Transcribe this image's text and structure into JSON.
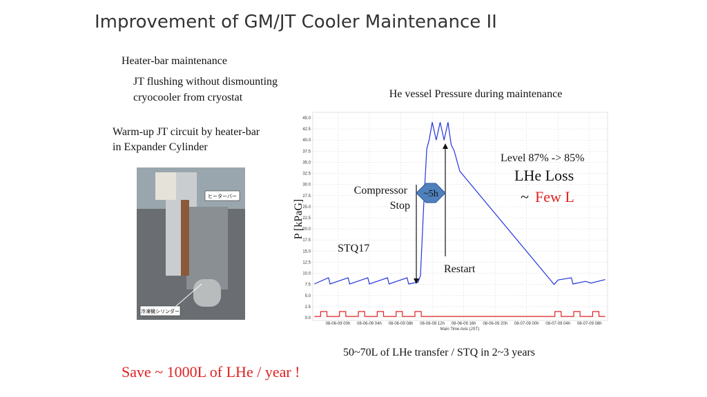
{
  "title": "Improvement of GM/JT Cooler Maintenance II",
  "left": {
    "heading": "Heater-bar maintenance",
    "sub1": "JT flushing without dismounting",
    "sub2": "cryocooler from cryostat",
    "warm1": "Warm-up JT circuit by heater-bar",
    "warm2": "in Expander Cylinder",
    "photo_label1": "ヒーターバー",
    "photo_label2": "冷凍機シリンダー"
  },
  "chart": {
    "type": "line",
    "title": "He vessel Pressure during maintenance",
    "ylabel": "P [kPaG]",
    "xlabel": "Main Time Axis (JST)",
    "xlim": [
      -3.2,
      34.3
    ],
    "ylim": [
      0,
      45
    ],
    "yticks": [
      {
        "value": 0,
        "label": "0.0"
      },
      {
        "value": 2.5,
        "label": "2.5"
      },
      {
        "value": 5,
        "label": "5.0"
      },
      {
        "value": 7.5,
        "label": "7.5"
      },
      {
        "value": 10,
        "label": "10.0"
      },
      {
        "value": 12.5,
        "label": "12.5"
      },
      {
        "value": 15,
        "label": "15.0"
      },
      {
        "value": 17.5,
        "label": "17.5"
      },
      {
        "value": 20,
        "label": "20.0"
      },
      {
        "value": 22.5,
        "label": "22.5"
      },
      {
        "value": 25,
        "label": "25.0"
      },
      {
        "value": 27.5,
        "label": "27.5"
      },
      {
        "value": 30,
        "label": "30.0"
      },
      {
        "value": 32.5,
        "label": "32.5"
      },
      {
        "value": 35,
        "label": "35.0"
      },
      {
        "value": 37.5,
        "label": "37.5"
      },
      {
        "value": 40,
        "label": "40.0"
      },
      {
        "value": 42.5,
        "label": "42.5"
      },
      {
        "value": 45,
        "label": "45.0"
      }
    ],
    "xticks": [
      {
        "value": 0,
        "label": "08-06-09 00h"
      },
      {
        "value": 4,
        "label": "08-06-09 04h"
      },
      {
        "value": 8,
        "label": "08-06-09 08h"
      },
      {
        "value": 12,
        "label": "08-06-09 12h"
      },
      {
        "value": 16,
        "label": "08-06-09 16h"
      },
      {
        "value": 20,
        "label": "08-06-09 20h"
      },
      {
        "value": 24,
        "label": "08-07-09 00h"
      },
      {
        "value": 28,
        "label": "08-07-09 04h"
      },
      {
        "value": 32,
        "label": "08-07-09 08h"
      }
    ],
    "grid": true,
    "series": [
      {
        "color": "#2233dd",
        "x": [
          -3,
          -1.2,
          -1,
          1.3,
          1.5,
          3.8,
          4,
          6.3,
          6.5,
          8.8,
          9,
          10.2,
          10.5,
          10.9,
          11.3,
          11.6,
          12,
          12.5,
          13,
          13.5,
          14,
          14.4,
          14.8,
          15.5,
          27.5,
          28,
          29.7,
          29.9,
          31.5,
          32.2,
          34
        ],
        "values": [
          7.6,
          9,
          7.6,
          9,
          7.6,
          9,
          7.6,
          9,
          7.6,
          9,
          7.6,
          8,
          9.5,
          25,
          38,
          40,
          44,
          40,
          44,
          40,
          44,
          39,
          37.5,
          33,
          7.5,
          8.5,
          9,
          7.6,
          8.2,
          7.8,
          8.6
        ]
      },
      {
        "color": "#e02020",
        "x": [
          -3,
          -2.2,
          -2.2,
          -1.4,
          -1.4,
          0.2,
          0.2,
          1,
          1,
          2.6,
          2.6,
          3.4,
          3.4,
          5,
          5,
          5.8,
          5.8,
          7.4,
          7.4,
          8.2,
          8.2,
          9.8,
          9.8,
          10.6,
          10.6,
          27.6,
          27.6,
          28.4,
          28.4,
          30,
          30,
          30.8,
          30.8,
          32.4,
          32.4,
          33.2,
          33.2,
          34
        ],
        "values": [
          0.3,
          0.3,
          1.4,
          1.4,
          0.3,
          0.3,
          1.4,
          1.4,
          0.3,
          0.3,
          1.4,
          1.4,
          0.3,
          0.3,
          1.4,
          1.4,
          0.3,
          0.3,
          1.4,
          1.4,
          0.3,
          0.3,
          1.4,
          1.4,
          0.3,
          0.3,
          1.4,
          1.4,
          0.3,
          0.3,
          1.4,
          1.4,
          0.3,
          0.3,
          1.4,
          1.4,
          0.3,
          0.3
        ]
      }
    ],
    "annotations": {
      "compressor1": "Compressor",
      "compressor2": "Stop",
      "duration": "~5h",
      "restart": "Restart",
      "stq": "STQ17",
      "level": "Level 87% -> 85%",
      "loss": "LHe Loss",
      "tilde": "~",
      "few": "Few L"
    }
  },
  "footer": {
    "transfer": "50~70L of  LHe transfer / STQ in 2~3 years",
    "save": "Save ~ 1000L of LHe  / year !"
  }
}
